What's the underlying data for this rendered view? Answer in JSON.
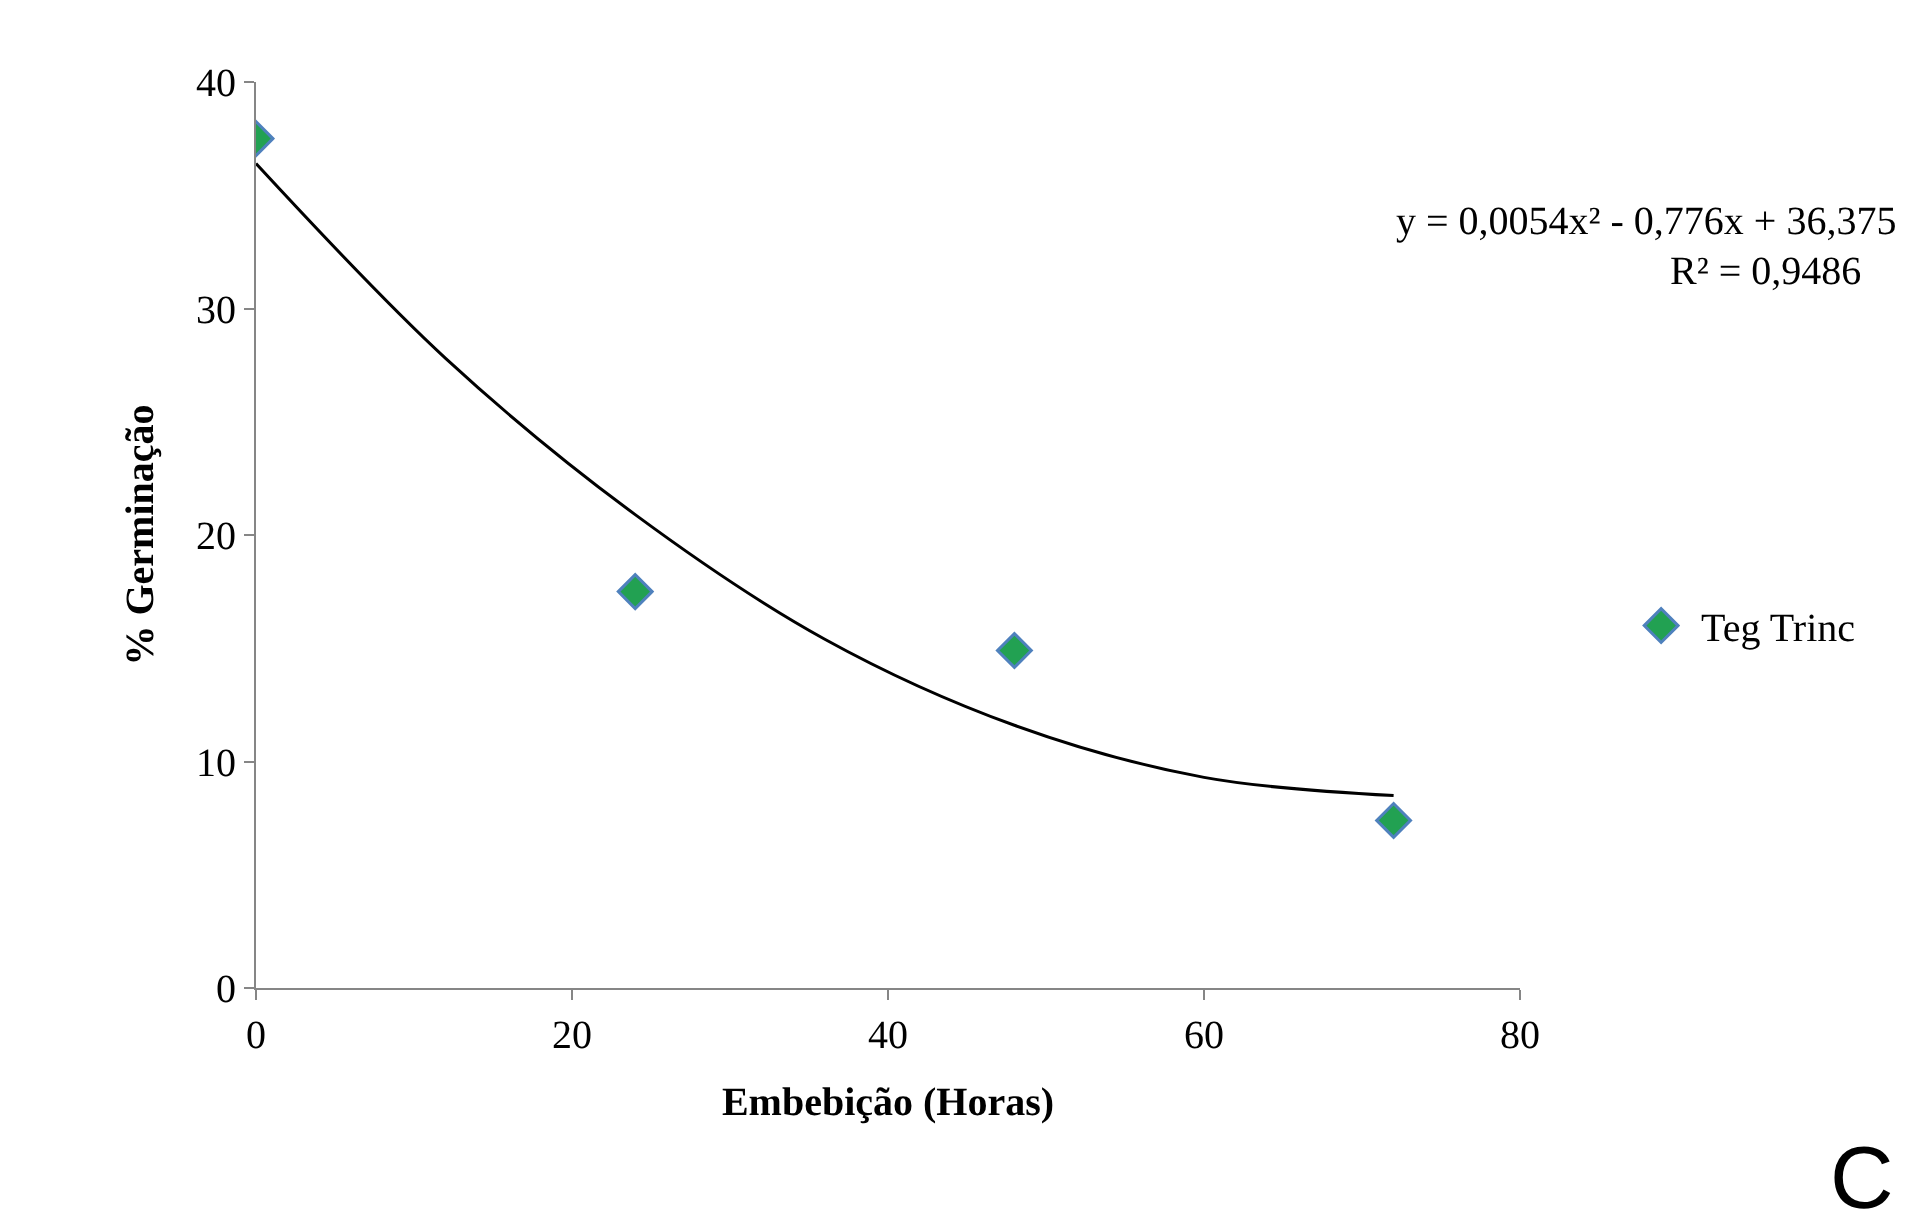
{
  "chart_data": {
    "type": "scatter",
    "xlabel": "Embebição (Horas)",
    "ylabel": "% Germinação",
    "x": [
      0,
      24,
      48,
      72
    ],
    "series": [
      {
        "name": "Teg Trinc",
        "color": "#22a152",
        "values": [
          37.5,
          17.5,
          14.9,
          7.4
        ],
        "marker": "diamond"
      },
      {
        "type": "line",
        "color": "#000000",
        "x": [
          0,
          12,
          24,
          36,
          48,
          60,
          72
        ],
        "values": [
          36.4,
          27.8,
          20.9,
          15.4,
          11.6,
          9.3,
          8.5
        ],
        "line_style": "solid",
        "marker": "none"
      }
    ],
    "xlim": [
      0,
      80
    ],
    "xticks": [
      0,
      20,
      40,
      60,
      80
    ],
    "ylim": [
      0,
      40
    ],
    "yticks": [
      0,
      10,
      20,
      30,
      40
    ],
    "legend": "right",
    "annotations": [
      "y = 0,0054x² - 0,776x + 36,375",
      "R² = 0,9486",
      "C"
    ]
  }
}
